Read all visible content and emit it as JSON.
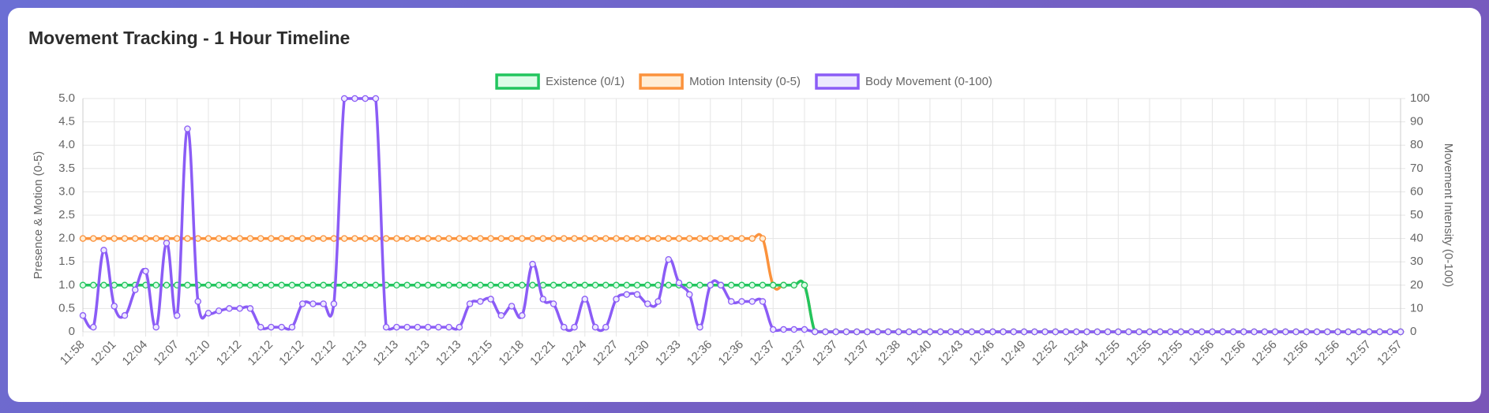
{
  "chart_data": {
    "type": "line",
    "title": "Movement Tracking - 1 Hour Timeline",
    "y_label": "Presence & Motion (0-5)",
    "y2_label": "Movement Intensity (0-100)",
    "legend": "top",
    "grid": true,
    "categories": [
      "11:58",
      null,
      null,
      "12:01",
      null,
      null,
      "12:04",
      null,
      null,
      "12:07",
      null,
      null,
      "12:10",
      null,
      null,
      "12:12",
      null,
      null,
      "12:12",
      null,
      null,
      "12:12",
      null,
      null,
      "12:12",
      null,
      null,
      "12:13",
      null,
      null,
      "12:13",
      null,
      null,
      "12:13",
      null,
      null,
      "12:13",
      null,
      null,
      "12:15",
      null,
      null,
      "12:18",
      null,
      null,
      "12:21",
      null,
      null,
      "12:24",
      null,
      null,
      "12:27",
      null,
      null,
      "12:30",
      null,
      null,
      "12:33",
      null,
      null,
      "12:36",
      null,
      null,
      "12:36",
      null,
      null,
      "12:37",
      null,
      null,
      "12:37",
      null,
      null,
      "12:37",
      null,
      null,
      "12:37",
      null,
      null,
      "12:38",
      null,
      null,
      "12:40",
      null,
      null,
      "12:43",
      null,
      null,
      "12:46",
      null,
      null,
      "12:49",
      null,
      null,
      "12:52",
      null,
      null,
      "12:54",
      null,
      null,
      "12:55",
      null,
      null,
      "12:55",
      null,
      null,
      "12:55",
      null,
      null,
      "12:56",
      null,
      null,
      "12:56",
      null,
      null,
      "12:56",
      null,
      null,
      "12:56",
      null,
      null,
      "12:56",
      null,
      null,
      "12:57",
      null,
      null,
      "12:57"
    ],
    "series": [
      {
        "name": "Existence (0/1)",
        "color": "#22c55e",
        "fill": "#dcfce7",
        "axis": "y",
        "values": [
          1,
          1,
          1,
          1,
          1,
          1,
          1,
          1,
          1,
          1,
          1,
          1,
          1,
          1,
          1,
          1,
          1,
          1,
          1,
          1,
          1,
          1,
          1,
          1,
          1,
          1,
          1,
          1,
          1,
          1,
          1,
          1,
          1,
          1,
          1,
          1,
          1,
          1,
          1,
          1,
          1,
          1,
          1,
          1,
          1,
          1,
          1,
          1,
          1,
          1,
          1,
          1,
          1,
          1,
          1,
          1,
          1,
          1,
          1,
          1,
          1,
          1,
          1,
          1,
          1,
          1,
          1,
          1,
          1,
          1,
          0,
          0,
          0,
          0,
          0,
          0,
          0,
          0,
          0,
          0,
          0,
          0,
          0,
          0,
          0,
          0,
          0,
          0,
          0,
          0,
          0,
          0,
          0,
          0,
          0,
          0,
          0,
          0,
          0,
          0,
          0,
          0,
          0,
          0,
          0,
          0,
          0,
          0,
          0,
          0,
          0,
          0,
          0,
          0,
          0,
          0,
          0,
          0,
          0,
          0,
          0,
          0,
          0,
          0,
          0,
          0,
          0
        ]
      },
      {
        "name": "Motion Intensity (0-5)",
        "color": "#fb923c",
        "fill": "#ffedd5",
        "axis": "y",
        "values": [
          2,
          2,
          2,
          2,
          2,
          2,
          2,
          2,
          2,
          2,
          2,
          2,
          2,
          2,
          2,
          2,
          2,
          2,
          2,
          2,
          2,
          2,
          2,
          2,
          2,
          2,
          2,
          2,
          2,
          2,
          2,
          2,
          2,
          2,
          2,
          2,
          2,
          2,
          2,
          2,
          2,
          2,
          2,
          2,
          2,
          2,
          2,
          2,
          2,
          2,
          2,
          2,
          2,
          2,
          2,
          2,
          2,
          2,
          2,
          2,
          2,
          2,
          2,
          2,
          2,
          2,
          1,
          1,
          1,
          1,
          0,
          0,
          0,
          0,
          0,
          0,
          0,
          0,
          0,
          0,
          0,
          0,
          0,
          0,
          0,
          0,
          0,
          0,
          0,
          0,
          0,
          0,
          0,
          0,
          0,
          0,
          0,
          0,
          0,
          0,
          0,
          0,
          0,
          0,
          0,
          0,
          0,
          0,
          0,
          0,
          0,
          0,
          0,
          0,
          0,
          0,
          0,
          0,
          0,
          0,
          0,
          0,
          0,
          0,
          0,
          0,
          0
        ]
      },
      {
        "name": "Body Movement (0-100)",
        "color": "#8b5cf6",
        "fill": "#ede9fe",
        "axis": "y2",
        "values": [
          7,
          2,
          35,
          11,
          7,
          18,
          26,
          2,
          38,
          7,
          87,
          13,
          8,
          9,
          10,
          10,
          10,
          2,
          2,
          2,
          2,
          12,
          12,
          12,
          12,
          100,
          100,
          100,
          100,
          2,
          2,
          2,
          2,
          2,
          2,
          2,
          2,
          12,
          13,
          14,
          7,
          11,
          7,
          29,
          14,
          12,
          2,
          2,
          14,
          2,
          2,
          14,
          16,
          16,
          12,
          13,
          31,
          21,
          16,
          2,
          20,
          20,
          13,
          13,
          13,
          13,
          1,
          1,
          1,
          1,
          0,
          0,
          0,
          0,
          0,
          0,
          0,
          0,
          0,
          0,
          0,
          0,
          0,
          0,
          0,
          0,
          0,
          0,
          0,
          0,
          0,
          0,
          0,
          0,
          0,
          0,
          0,
          0,
          0,
          0,
          0,
          0,
          0,
          0,
          0,
          0,
          0,
          0,
          0,
          0,
          0,
          0,
          0,
          0,
          0,
          0,
          0,
          0,
          0,
          0,
          0,
          0,
          0,
          0,
          0,
          0,
          0
        ]
      }
    ],
    "ylim": [
      0,
      5
    ],
    "yticks": [
      0,
      0.5,
      {
        "value": 1,
        "label": "1.0"
      },
      1.5,
      {
        "value": 2,
        "label": "2.0"
      },
      2.5,
      {
        "value": 3,
        "label": "3.0"
      },
      3.5,
      {
        "value": 4,
        "label": "4.0"
      },
      4.5,
      {
        "value": 5,
        "label": "5.0"
      }
    ],
    "y2lim": [
      0,
      100
    ],
    "y2ticks": [
      0,
      10,
      20,
      30,
      40,
      50,
      60,
      70,
      80,
      90,
      100
    ]
  }
}
